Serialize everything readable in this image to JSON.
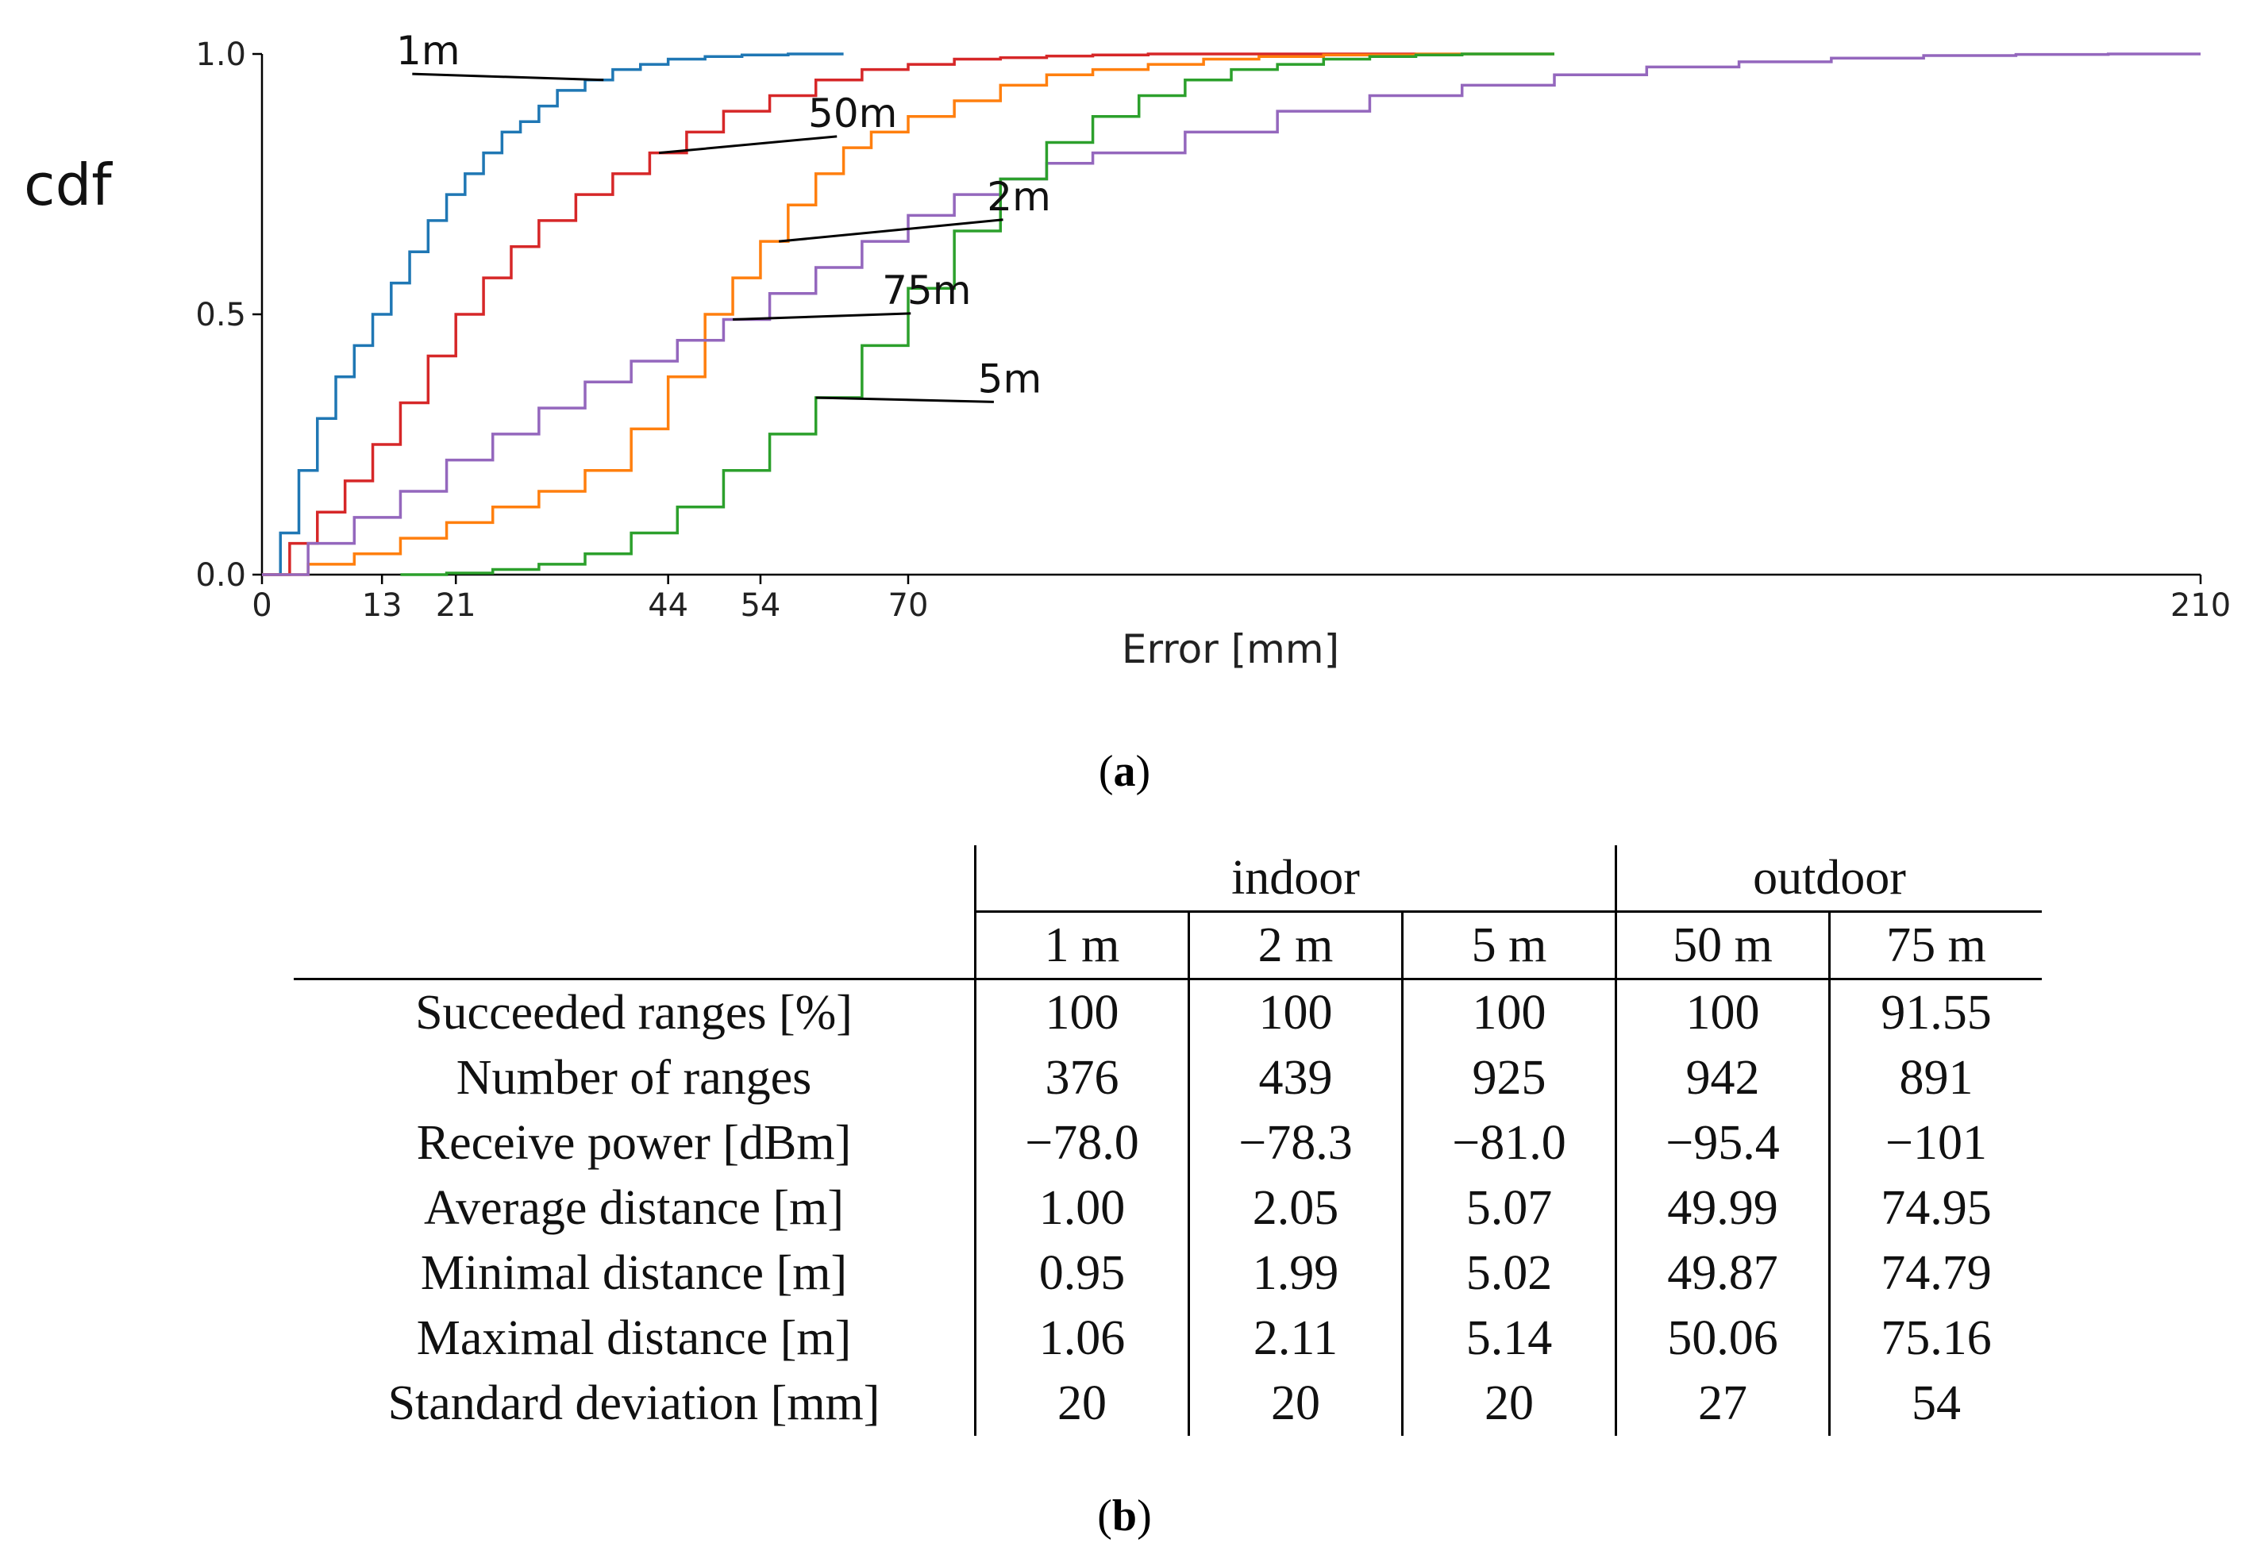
{
  "chart_data": {
    "type": "line",
    "ylabel": "cdf",
    "xlabel": "Error [mm]",
    "xlim": [
      0,
      210
    ],
    "ylim": [
      0,
      1
    ],
    "x_ticks": [
      "0",
      "13",
      "21",
      "44",
      "54",
      "70",
      "210"
    ],
    "y_ticks": [
      "0.0",
      "0.5",
      "1.0"
    ],
    "grid": false,
    "legend": "none (inline annotations)",
    "series": [
      {
        "name": "1m",
        "color": "#1f77b4",
        "x": [
          0,
          2,
          4,
          6,
          8,
          10,
          12,
          14,
          16,
          18,
          20,
          22,
          24,
          26,
          28,
          30,
          32,
          35,
          38,
          41,
          44,
          48,
          52,
          57,
          63
        ],
        "y": [
          0.0,
          0.08,
          0.2,
          0.3,
          0.38,
          0.44,
          0.5,
          0.56,
          0.62,
          0.68,
          0.73,
          0.77,
          0.81,
          0.85,
          0.87,
          0.9,
          0.93,
          0.95,
          0.97,
          0.98,
          0.99,
          0.995,
          0.998,
          1.0,
          1.0
        ]
      },
      {
        "name": "50m",
        "color": "#d62728",
        "x": [
          0,
          3,
          6,
          9,
          12,
          15,
          18,
          21,
          24,
          27,
          30,
          34,
          38,
          42,
          46,
          50,
          55,
          60,
          65,
          70,
          75,
          80,
          85,
          90,
          96,
          103,
          110,
          118,
          125
        ],
        "y": [
          0.0,
          0.06,
          0.12,
          0.18,
          0.25,
          0.33,
          0.42,
          0.5,
          0.57,
          0.63,
          0.68,
          0.73,
          0.77,
          0.81,
          0.85,
          0.89,
          0.92,
          0.95,
          0.97,
          0.98,
          0.99,
          0.993,
          0.996,
          0.998,
          1.0,
          1.0,
          1.0,
          1.0,
          1.0
        ]
      },
      {
        "name": "2m",
        "color": "#ff7f0e",
        "x": [
          0,
          5,
          10,
          15,
          20,
          25,
          30,
          35,
          40,
          44,
          48,
          51,
          54,
          57,
          60,
          63,
          66,
          70,
          75,
          80,
          85,
          90,
          96,
          102,
          108,
          115,
          125,
          140
        ],
        "y": [
          0.0,
          0.02,
          0.04,
          0.07,
          0.1,
          0.13,
          0.16,
          0.2,
          0.28,
          0.38,
          0.5,
          0.57,
          0.64,
          0.71,
          0.77,
          0.82,
          0.85,
          0.88,
          0.91,
          0.94,
          0.96,
          0.97,
          0.98,
          0.99,
          0.995,
          0.998,
          1.0,
          1.0
        ]
      },
      {
        "name": "75m",
        "color": "#9467bd",
        "x": [
          0,
          5,
          10,
          15,
          20,
          25,
          30,
          35,
          40,
          45,
          50,
          55,
          60,
          65,
          70,
          75,
          80,
          85,
          90,
          100,
          110,
          120,
          130,
          140,
          150,
          160,
          170,
          180,
          190,
          200,
          210
        ],
        "y": [
          0.0,
          0.06,
          0.11,
          0.16,
          0.22,
          0.27,
          0.32,
          0.37,
          0.41,
          0.45,
          0.49,
          0.54,
          0.59,
          0.64,
          0.69,
          0.73,
          0.76,
          0.79,
          0.81,
          0.85,
          0.89,
          0.92,
          0.94,
          0.96,
          0.975,
          0.985,
          0.992,
          0.997,
          0.999,
          1.0,
          1.0
        ]
      },
      {
        "name": "5m",
        "color": "#2ca02c",
        "x": [
          15,
          20,
          25,
          30,
          35,
          40,
          45,
          50,
          55,
          60,
          65,
          70,
          75,
          80,
          85,
          90,
          95,
          100,
          105,
          110,
          115,
          120,
          125,
          130,
          135,
          140
        ],
        "y": [
          0.0,
          0.003,
          0.01,
          0.02,
          0.04,
          0.08,
          0.13,
          0.2,
          0.27,
          0.34,
          0.44,
          0.55,
          0.66,
          0.76,
          0.83,
          0.88,
          0.92,
          0.95,
          0.97,
          0.98,
          0.99,
          0.995,
          0.998,
          1.0,
          1.0,
          1.0
        ]
      }
    ]
  },
  "captions": {
    "a": "a",
    "b": "b"
  },
  "table": {
    "group_headers": [
      "indoor",
      "outdoor"
    ],
    "columns": [
      "1 m",
      "2 m",
      "5 m",
      "50 m",
      "75 m"
    ],
    "rows": [
      {
        "label": "Succeeded ranges [%]",
        "values": [
          "100",
          "100",
          "100",
          "100",
          "91.55"
        ]
      },
      {
        "label": "Number of ranges",
        "values": [
          "376",
          "439",
          "925",
          "942",
          "891"
        ]
      },
      {
        "label": "Receive power [dBm]",
        "values": [
          "−78.0",
          "−78.3",
          "−81.0",
          "−95.4",
          "−101"
        ]
      },
      {
        "label": "Average distance [m]",
        "values": [
          "1.00",
          "2.05",
          "5.07",
          "49.99",
          "74.95"
        ]
      },
      {
        "label": "Minimal distance [m]",
        "values": [
          "0.95",
          "1.99",
          "5.02",
          "49.87",
          "74.79"
        ]
      },
      {
        "label": "Maximal distance [m]",
        "values": [
          "1.06",
          "2.11",
          "5.14",
          "50.06",
          "75.16"
        ]
      },
      {
        "label": "Standard deviation [mm]",
        "values": [
          "20",
          "20",
          "20",
          "27",
          "54"
        ]
      }
    ]
  }
}
